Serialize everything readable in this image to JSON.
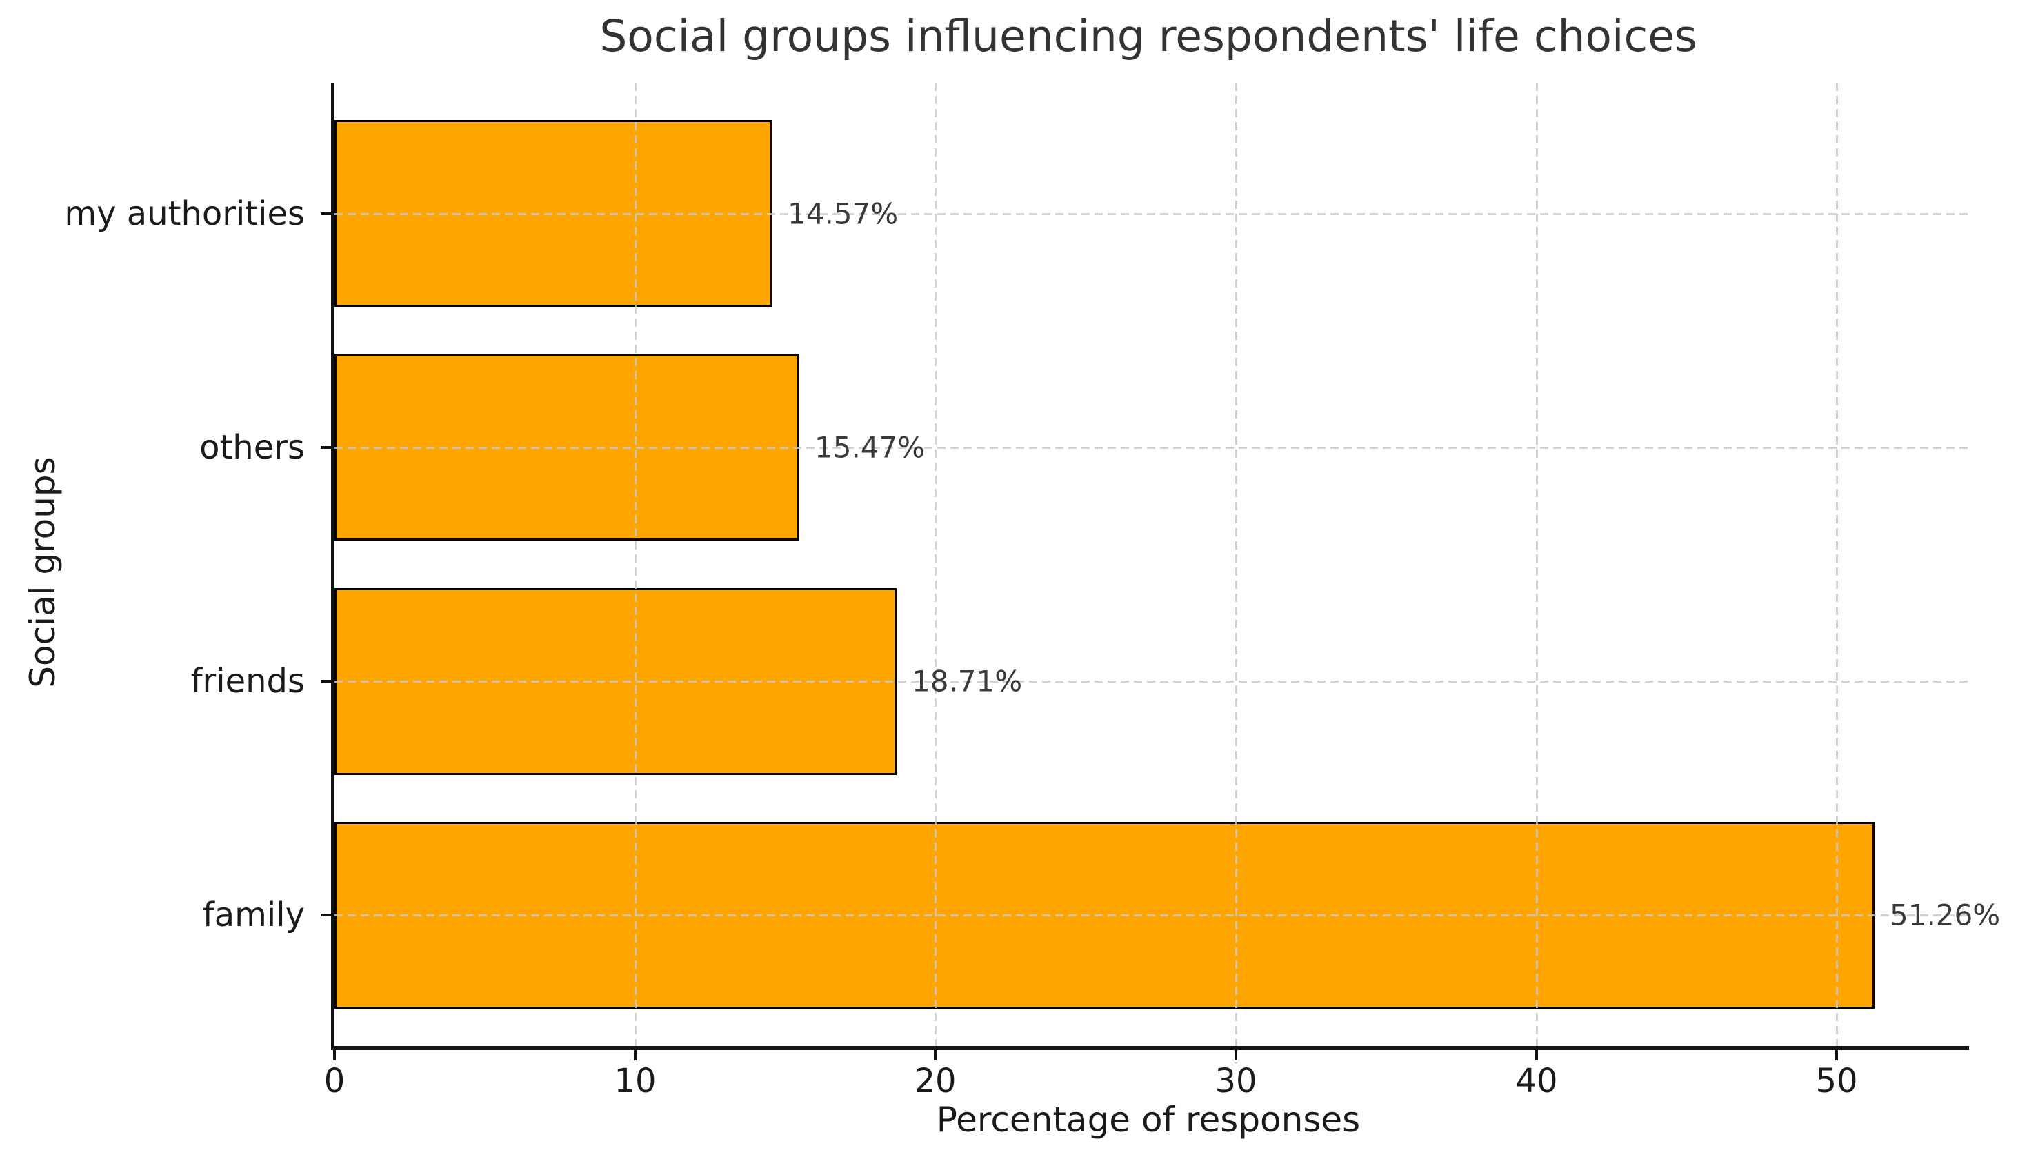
{
  "chart_data": {
    "type": "bar",
    "orientation": "horizontal",
    "title": "Social groups influencing respondents' life choices",
    "xlabel": "Percentage of responses",
    "ylabel": "Social groups",
    "categories": [
      "my authorities",
      "others",
      "friends",
      "family"
    ],
    "values": [
      14.57,
      15.47,
      18.71,
      51.26
    ],
    "value_labels": [
      "14.57%",
      "15.47%",
      "18.71%",
      "51.26%"
    ],
    "x_ticks": [
      0,
      10,
      20,
      30,
      40,
      50
    ],
    "xlim": [
      0,
      54.4
    ],
    "grid": true,
    "legend": false,
    "bar_color": "#FFA500",
    "bar_edge_color": "#000000",
    "grid_color": "#c9c9c9",
    "axis_color": "#111111"
  }
}
